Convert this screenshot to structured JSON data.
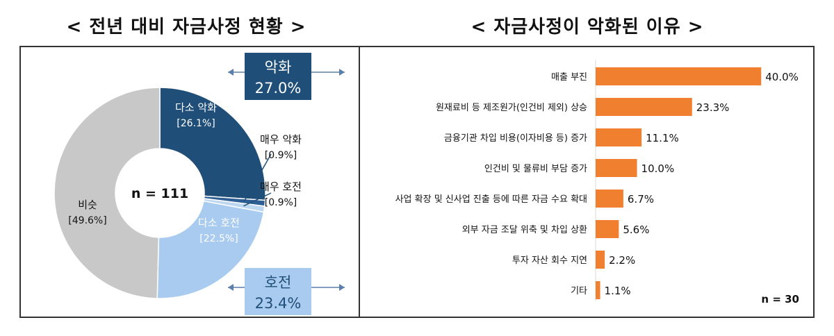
{
  "titles": {
    "left": "< 전년 대비 자금사정 현황 >",
    "right": "< 자금사정이 악화된 이유 >"
  },
  "chart_data": [
    {
      "type": "pie",
      "title": "< 전년 대비 자금사정 현황 >",
      "n_label": "n = 111",
      "slices": [
        {
          "name": "다소 악화",
          "value": 26.1,
          "label": "[26.1%]",
          "color": "#1f4e79"
        },
        {
          "name": "매우 악화",
          "value": 0.9,
          "label": "[0.9%]",
          "color": "#2e5f94"
        },
        {
          "name": "매우 호전",
          "value": 0.9,
          "label": "[0.9%]",
          "color": "#bdd7f0"
        },
        {
          "name": "다소 호전",
          "value": 22.5,
          "label": "[22.5%]",
          "color": "#a9cbef"
        },
        {
          "name": "비슷",
          "value": 49.6,
          "label": "[49.6%]",
          "color": "#c8c8c8"
        }
      ],
      "summary": {
        "worse": {
          "label": "악화",
          "value": "27.0%",
          "color": "#1f4e79"
        },
        "better": {
          "label": "호전",
          "value": "23.4%",
          "color": "#a9cbef"
        }
      }
    },
    {
      "type": "bar",
      "orientation": "horizontal",
      "title": "< 자금사정이 악화된 이유 >",
      "n_label": "n = 30",
      "categories": [
        "매출 부진",
        "원재료비 등 제조원가(인건비 제외) 상승",
        "금융기관 차입 비용(이자비용 등) 증가",
        "인건비 및 물류비 부담 증가",
        "사업 확장 및 신사업 진출 등에 따른 자금 수요 확대",
        "외부 자금 조달 위축 및 차입 상환",
        "투자 자산 회수 지연",
        "기타"
      ],
      "values": [
        40.0,
        23.3,
        11.1,
        10.0,
        6.7,
        5.6,
        2.2,
        1.1
      ],
      "value_labels": [
        "40.0%",
        "23.3%",
        "11.1%",
        "10.0%",
        "6.7%",
        "5.6%",
        "2.2%",
        "1.1%"
      ],
      "xlim": [
        0,
        45
      ],
      "bar_color": "#f08030"
    }
  ]
}
